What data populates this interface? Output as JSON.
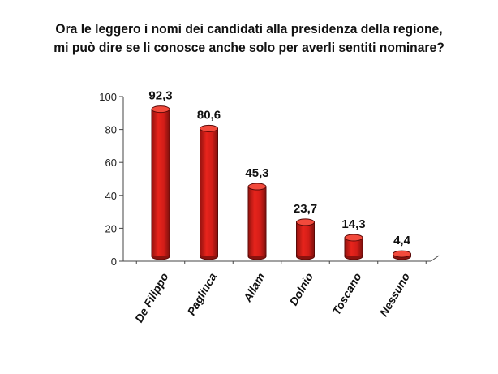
{
  "chart_data": {
    "type": "bar",
    "title": "Ora le leggero i nomi dei candidati alla presidenza della regione,",
    "subtitle": "mi può dire se li conosce anche solo per averli sentiti nominare?",
    "categories": [
      "De Filippo",
      "Pagliuca",
      "Allam",
      "Dolnio",
      "Toscano",
      "Nessuno"
    ],
    "values": [
      92.3,
      80.6,
      45.3,
      23.7,
      14.3,
      4.4
    ],
    "value_labels": [
      "92,3",
      "80,6",
      "45,3",
      "23,7",
      "14,3",
      "4,4"
    ],
    "yticks": [
      "0",
      "20",
      "40",
      "60",
      "80",
      "100"
    ],
    "ylim": [
      0,
      100
    ],
    "grid": false,
    "bar_color": "#e0201c"
  }
}
